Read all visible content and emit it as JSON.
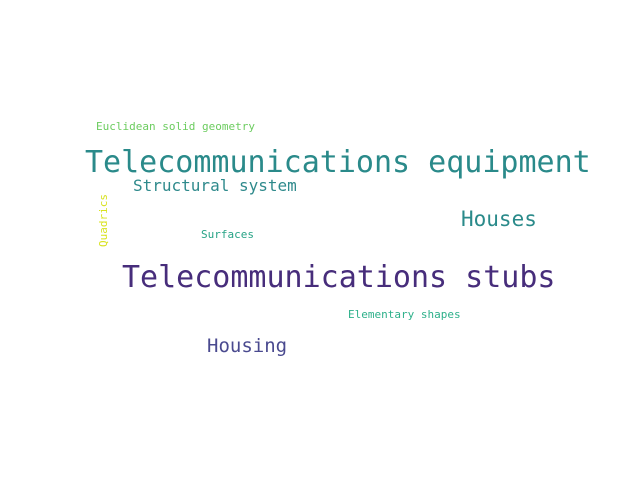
{
  "words": [
    {
      "id": "w-telecom-stubs",
      "text": "Telecommunications stubs",
      "color": "#472d7b"
    },
    {
      "id": "w-telecom-equip",
      "text": "Telecommunications equipment",
      "color": "#2a8a8a"
    },
    {
      "id": "w-houses",
      "text": "Houses",
      "color": "#2a8a8a"
    },
    {
      "id": "w-housing",
      "text": "Housing",
      "color": "#4a4a8f"
    },
    {
      "id": "w-structural",
      "text": "Structural system",
      "color": "#2f8a8c"
    },
    {
      "id": "w-euclidean",
      "text": "Euclidean solid geometry",
      "color": "#6ccc5f"
    },
    {
      "id": "w-surfaces",
      "text": "Surfaces",
      "color": "#27a386"
    },
    {
      "id": "w-elementary",
      "text": "Elementary shapes",
      "color": "#2db08a"
    },
    {
      "id": "w-quadrics",
      "text": "Quadrics",
      "color": "#d8e21f"
    }
  ]
}
